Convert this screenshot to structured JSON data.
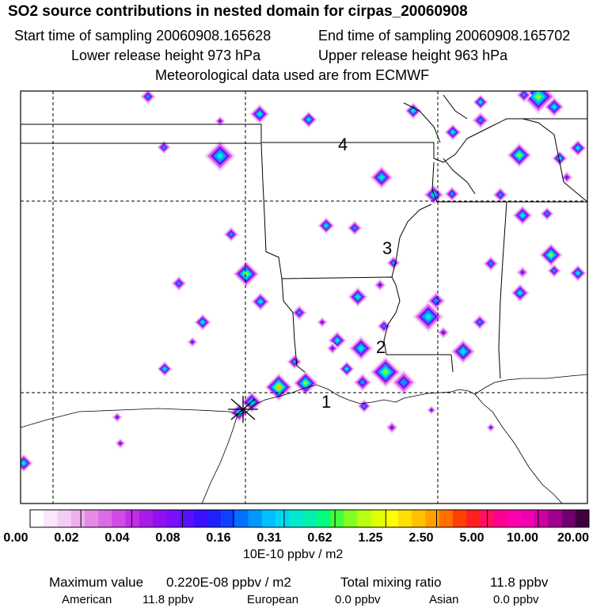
{
  "header": {
    "title": "SO2 source contributions in nested domain for cirpas_20060908",
    "start": "Start time of sampling 20060908.165628",
    "end": "End time of sampling 20060908.165702",
    "lower": "Lower release height  973 hPa",
    "upper": "Upper release height  963 hPa",
    "met": "Meteorological data used are from ECMWF"
  },
  "map": {
    "markers": [
      "1",
      "2",
      "3",
      "4"
    ],
    "source_symbol": "star-marker"
  },
  "chart_data": {
    "type": "heatmap",
    "title": "SO2 source contributions in nested domain for cirpas_20060908",
    "colorbar": {
      "unit_label": "10E-10 ppbv / m2",
      "tick_labels": [
        "0.00",
        "0.02",
        "0.04",
        "0.08",
        "0.16",
        "0.31",
        "0.62",
        "1.25",
        "2.50",
        "5.00",
        "10.00",
        "20.00"
      ],
      "colors": [
        "#ffffff",
        "#fbe6fb",
        "#f5ccf5",
        "#eeb0ee",
        "#e68ae8",
        "#dc6ce6",
        "#d04ae6",
        "#c22ee6",
        "#a81ce6",
        "#9010f0",
        "#7a10ff",
        "#5a10ff",
        "#3a10ff",
        "#2020ff",
        "#1040ff",
        "#0070ff",
        "#0098ff",
        "#00c0ff",
        "#00d8f0",
        "#00e8d0",
        "#00f0b0",
        "#00ff80",
        "#40ff40",
        "#80ff20",
        "#b8ff10",
        "#e0ff00",
        "#ffff00",
        "#ffe000",
        "#ffc000",
        "#ffa000",
        "#ff7000",
        "#ff4000",
        "#ff2020",
        "#ff1060",
        "#ff0090",
        "#ff00b0",
        "#f000b0",
        "#d000a0",
        "#a00090",
        "#700070",
        "#400040"
      ]
    },
    "footer": {
      "max_label": "Maximum value",
      "max_value": "0.220E-08 ppbv / m2",
      "total_label": "Total mixing ratio",
      "total_value": "11.8 ppbv",
      "american_label": "American",
      "american_value": "11.8 ppbv",
      "european_label": "European",
      "european_value": "0.0 ppbv",
      "asian_label": "Asian",
      "asian_value": "0.0 ppbv"
    }
  }
}
